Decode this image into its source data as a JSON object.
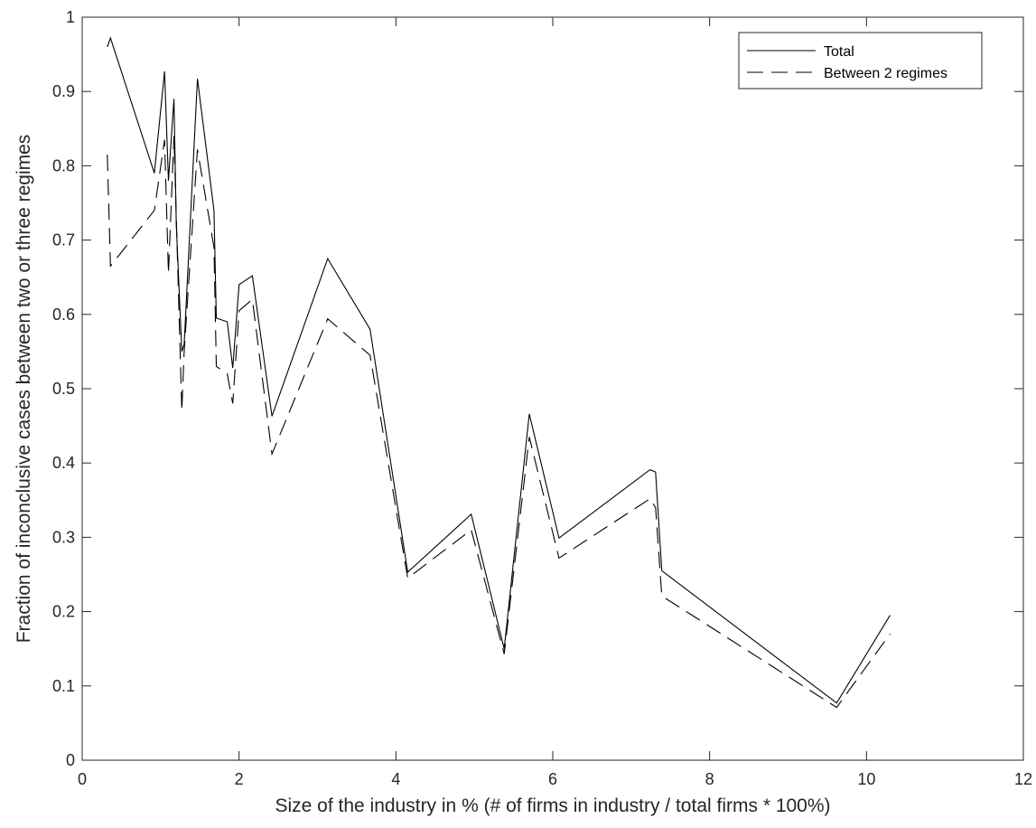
{
  "chart_data": {
    "type": "line",
    "title": "",
    "xlabel": "Size of the industry in % (# of firms in industry / total firms * 100%)",
    "ylabel": "Fraction of inconclusive cases between two or three regimes",
    "xlim": [
      0,
      12
    ],
    "ylim": [
      0,
      1
    ],
    "xticks": [
      0,
      2,
      4,
      6,
      8,
      10,
      12
    ],
    "yticks": [
      0,
      0.1,
      0.2,
      0.3,
      0.4,
      0.5,
      0.6,
      0.7,
      0.8,
      0.9,
      1
    ],
    "xtick_labels": [
      "0",
      "2",
      "4",
      "6",
      "8",
      "10",
      "12"
    ],
    "ytick_labels": [
      "0",
      "0.1",
      "0.2",
      "0.3",
      "0.4",
      "0.5",
      "0.6",
      "0.7",
      "0.8",
      "0.9",
      "1"
    ],
    "grid": false,
    "legend_position": "top-right",
    "series": [
      {
        "name": "Total",
        "line_style": "solid",
        "color": "#000000",
        "x": [
          0.32,
          0.36,
          0.92,
          1.05,
          1.1,
          1.17,
          1.2,
          1.27,
          1.3,
          1.47,
          1.68,
          1.71,
          1.85,
          1.92,
          2.0,
          2.17,
          2.42,
          3.13,
          3.67,
          4.15,
          4.96,
          5.38,
          5.7,
          6.08,
          7.24,
          7.31,
          7.39,
          9.62,
          10.3
        ],
        "y": [
          0.96,
          0.972,
          0.79,
          0.927,
          0.78,
          0.89,
          0.72,
          0.55,
          0.56,
          0.917,
          0.74,
          0.595,
          0.59,
          0.528,
          0.64,
          0.652,
          0.463,
          0.675,
          0.58,
          0.253,
          0.331,
          0.15,
          0.466,
          0.299,
          0.391,
          0.388,
          0.255,
          0.077,
          0.195
        ]
      },
      {
        "name": "Between 2 regimes",
        "line_style": "dashed",
        "color": "#000000",
        "x": [
          0.32,
          0.36,
          0.92,
          1.05,
          1.1,
          1.17,
          1.2,
          1.27,
          1.3,
          1.47,
          1.68,
          1.71,
          1.85,
          1.92,
          2.0,
          2.17,
          2.42,
          3.13,
          3.67,
          4.15,
          4.96,
          5.38,
          5.7,
          6.08,
          7.24,
          7.31,
          7.39,
          9.62,
          10.3
        ],
        "y": [
          0.815,
          0.665,
          0.74,
          0.835,
          0.655,
          0.84,
          0.73,
          0.47,
          0.55,
          0.822,
          0.69,
          0.53,
          0.52,
          0.48,
          0.605,
          0.62,
          0.412,
          0.594,
          0.545,
          0.245,
          0.31,
          0.143,
          0.435,
          0.272,
          0.352,
          0.34,
          0.221,
          0.071,
          0.17
        ]
      }
    ]
  }
}
